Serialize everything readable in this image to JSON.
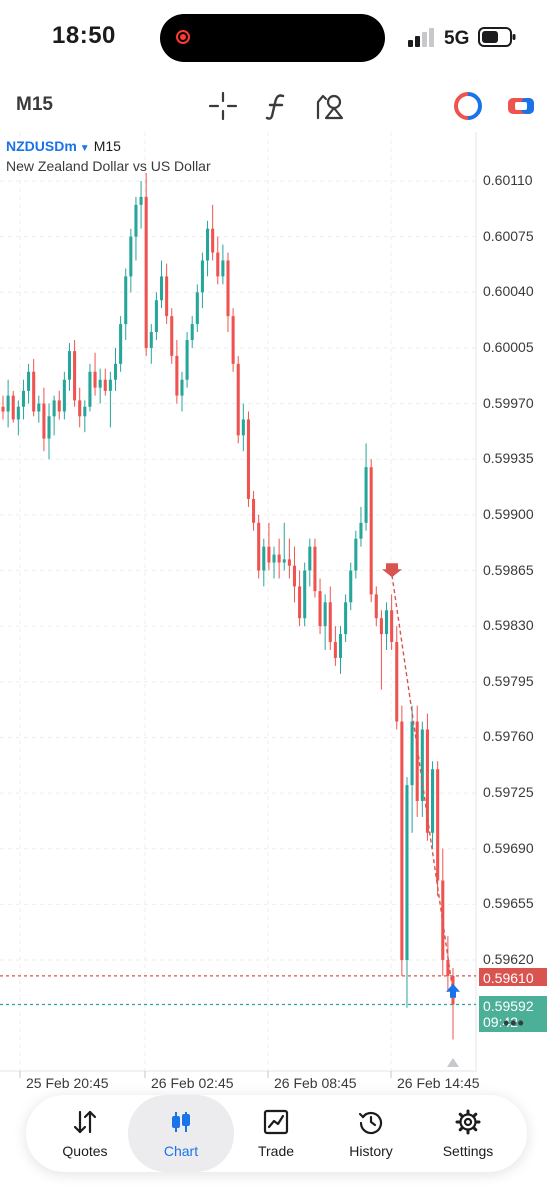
{
  "status_bar": {
    "time": "18:50",
    "network": "5G"
  },
  "toolbar": {
    "timeframe": "M15",
    "tools": [
      "crosshair-icon",
      "indicator-icon",
      "objects-icon",
      "one-click-trade-icon",
      "trade-panel-icon"
    ]
  },
  "chart": {
    "symbol": "NZDUSDm",
    "timeframe": "M15",
    "description": "New Zealand Dollar vs US Dollar",
    "ask_price": "0.59610",
    "bid_price": "0.59592",
    "countdown": "09:42",
    "colors": {
      "bull": "#26a69a",
      "bear": "#ef5350",
      "ask_line": "#d9534f",
      "bid_line": "#26a69a"
    }
  },
  "chart_data": {
    "type": "candlestick",
    "symbol": "NZDUSDm",
    "timeframe": "M15",
    "title": "NZDUSDm",
    "ylim": [
      0.5955,
      0.6012
    ],
    "y_ticks": [
      "0.60110",
      "0.60075",
      "0.60040",
      "0.60005",
      "0.59970",
      "0.59935",
      "0.59900",
      "0.59865",
      "0.59830",
      "0.59795",
      "0.59760",
      "0.59725",
      "0.59690",
      "0.59655",
      "0.59620"
    ],
    "x_ticks": [
      "25 Feb 20:45",
      "26 Feb 02:45",
      "26 Feb 08:45",
      "26 Feb 14:45"
    ],
    "ask_line": 0.5961,
    "bid_line": 0.59592,
    "candles": [
      [
        0.59968,
        0.59975,
        0.5996,
        0.59965
      ],
      [
        0.59965,
        0.59985,
        0.59955,
        0.59975
      ],
      [
        0.59975,
        0.59978,
        0.59958,
        0.5996
      ],
      [
        0.5996,
        0.59972,
        0.5995,
        0.59968
      ],
      [
        0.59968,
        0.59985,
        0.5996,
        0.59978
      ],
      [
        0.59978,
        0.59995,
        0.5997,
        0.5999
      ],
      [
        0.5999,
        0.59998,
        0.59962,
        0.59965
      ],
      [
        0.59965,
        0.59975,
        0.59958,
        0.5997
      ],
      [
        0.5997,
        0.5998,
        0.5994,
        0.59948
      ],
      [
        0.59948,
        0.5997,
        0.59935,
        0.59962
      ],
      [
        0.59962,
        0.59975,
        0.5995,
        0.59972
      ],
      [
        0.59972,
        0.59978,
        0.5996,
        0.59965
      ],
      [
        0.59965,
        0.5999,
        0.5996,
        0.59985
      ],
      [
        0.59985,
        0.60008,
        0.59978,
        0.60003
      ],
      [
        0.60003,
        0.6001,
        0.59968,
        0.59972
      ],
      [
        0.59972,
        0.5998,
        0.59955,
        0.59962
      ],
      [
        0.59962,
        0.59972,
        0.59952,
        0.59968
      ],
      [
        0.59968,
        0.59995,
        0.59965,
        0.5999
      ],
      [
        0.5999,
        0.60002,
        0.59975,
        0.5998
      ],
      [
        0.5998,
        0.59992,
        0.5997,
        0.59985
      ],
      [
        0.59985,
        0.59992,
        0.59975,
        0.59978
      ],
      [
        0.59978,
        0.5999,
        0.59955,
        0.59985
      ],
      [
        0.59985,
        0.60005,
        0.59978,
        0.59995
      ],
      [
        0.59995,
        0.60025,
        0.5999,
        0.6002
      ],
      [
        0.6002,
        0.60055,
        0.6001,
        0.6005
      ],
      [
        0.6005,
        0.6008,
        0.6004,
        0.60075
      ],
      [
        0.60075,
        0.601,
        0.6006,
        0.60095
      ],
      [
        0.60095,
        0.6011,
        0.6008,
        0.601
      ],
      [
        0.601,
        0.60115,
        0.6,
        0.60005
      ],
      [
        0.60005,
        0.6002,
        0.59995,
        0.60015
      ],
      [
        0.60015,
        0.6004,
        0.6001,
        0.60035
      ],
      [
        0.60035,
        0.6006,
        0.6003,
        0.6005
      ],
      [
        0.6005,
        0.60058,
        0.6002,
        0.60025
      ],
      [
        0.60025,
        0.6003,
        0.59995,
        0.6
      ],
      [
        0.6,
        0.6001,
        0.5997,
        0.59975
      ],
      [
        0.59975,
        0.5999,
        0.59965,
        0.59985
      ],
      [
        0.59985,
        0.60015,
        0.5998,
        0.6001
      ],
      [
        0.6001,
        0.60025,
        0.60005,
        0.6002
      ],
      [
        0.6002,
        0.60045,
        0.60015,
        0.6004
      ],
      [
        0.6004,
        0.60065,
        0.6003,
        0.6006
      ],
      [
        0.6006,
        0.60085,
        0.6005,
        0.6008
      ],
      [
        0.6008,
        0.60095,
        0.6006,
        0.60065
      ],
      [
        0.60065,
        0.60075,
        0.60045,
        0.6005
      ],
      [
        0.6005,
        0.6007,
        0.60045,
        0.6006
      ],
      [
        0.6006,
        0.60065,
        0.60015,
        0.60025
      ],
      [
        0.60025,
        0.6003,
        0.5999,
        0.59995
      ],
      [
        0.59995,
        0.6,
        0.59945,
        0.5995
      ],
      [
        0.5995,
        0.5997,
        0.5994,
        0.5996
      ],
      [
        0.5996,
        0.59965,
        0.59905,
        0.5991
      ],
      [
        0.5991,
        0.59915,
        0.5989,
        0.59895
      ],
      [
        0.59895,
        0.599,
        0.5986,
        0.59865
      ],
      [
        0.59865,
        0.59885,
        0.59855,
        0.5988
      ],
      [
        0.5988,
        0.59895,
        0.59865,
        0.5987
      ],
      [
        0.5987,
        0.5988,
        0.5986,
        0.59875
      ],
      [
        0.59875,
        0.59885,
        0.5986,
        0.5987
      ],
      [
        0.5987,
        0.59895,
        0.59865,
        0.59872
      ],
      [
        0.59872,
        0.59885,
        0.5986,
        0.59868
      ],
      [
        0.59868,
        0.5988,
        0.59845,
        0.59855
      ],
      [
        0.59855,
        0.59865,
        0.5983,
        0.59835
      ],
      [
        0.59835,
        0.5987,
        0.5983,
        0.59865
      ],
      [
        0.59865,
        0.59885,
        0.59855,
        0.5988
      ],
      [
        0.5988,
        0.59885,
        0.59848,
        0.59852
      ],
      [
        0.59852,
        0.5986,
        0.59825,
        0.5983
      ],
      [
        0.5983,
        0.5985,
        0.59815,
        0.59845
      ],
      [
        0.59845,
        0.59855,
        0.59815,
        0.5982
      ],
      [
        0.5982,
        0.5983,
        0.59805,
        0.5981
      ],
      [
        0.5981,
        0.5983,
        0.598,
        0.59825
      ],
      [
        0.59825,
        0.5985,
        0.5982,
        0.59845
      ],
      [
        0.59845,
        0.5987,
        0.5984,
        0.59865
      ],
      [
        0.59865,
        0.5989,
        0.5986,
        0.59885
      ],
      [
        0.59885,
        0.59905,
        0.5988,
        0.59895
      ],
      [
        0.59895,
        0.59945,
        0.5989,
        0.5993
      ],
      [
        0.5993,
        0.59935,
        0.59845,
        0.5985
      ],
      [
        0.5985,
        0.59855,
        0.5983,
        0.59835
      ],
      [
        0.59835,
        0.5984,
        0.5979,
        0.59825
      ],
      [
        0.59825,
        0.59845,
        0.59815,
        0.5984
      ],
      [
        0.5984,
        0.5985,
        0.59815,
        0.5982
      ],
      [
        0.5982,
        0.5983,
        0.59765,
        0.5977
      ],
      [
        0.5977,
        0.5978,
        0.5961,
        0.5962
      ],
      [
        0.5962,
        0.59735,
        0.5959,
        0.5973
      ],
      [
        0.5973,
        0.5978,
        0.597,
        0.5977
      ],
      [
        0.5977,
        0.5978,
        0.5971,
        0.5972
      ],
      [
        0.5972,
        0.5977,
        0.5971,
        0.59765
      ],
      [
        0.59765,
        0.59775,
        0.59695,
        0.597
      ],
      [
        0.597,
        0.59745,
        0.5969,
        0.5974
      ],
      [
        0.5974,
        0.59745,
        0.5966,
        0.5967
      ],
      [
        0.5967,
        0.5969,
        0.5961,
        0.5962
      ],
      [
        0.5962,
        0.59635,
        0.596,
        0.5961
      ],
      [
        0.5961,
        0.59615,
        0.5957,
        0.59592
      ]
    ],
    "trade_markers": [
      {
        "type": "sell",
        "price": 0.59862
      },
      {
        "type": "buy",
        "price": 0.596
      }
    ]
  },
  "nav": {
    "items": [
      {
        "label": "Quotes",
        "icon": "quotes-icon"
      },
      {
        "label": "Chart",
        "icon": "chart-icon"
      },
      {
        "label": "Trade",
        "icon": "trade-icon"
      },
      {
        "label": "History",
        "icon": "history-icon"
      },
      {
        "label": "Settings",
        "icon": "settings-icon"
      }
    ],
    "active": "Chart"
  }
}
